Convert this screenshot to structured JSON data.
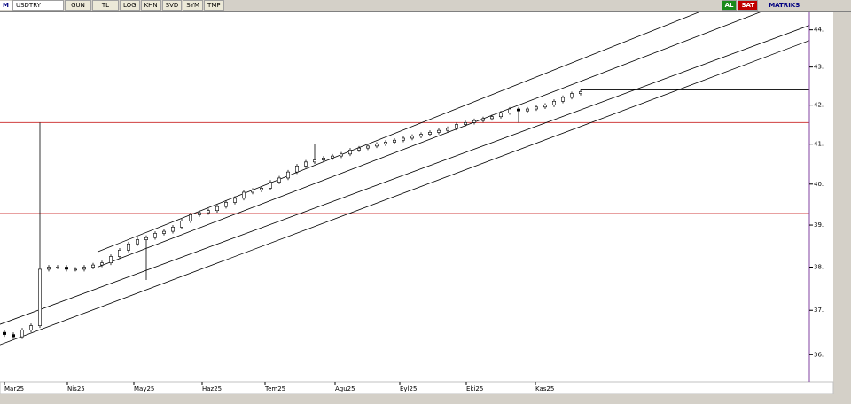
{
  "toolbar": {
    "logo": "M",
    "symbol": "USDTRY",
    "buttons": [
      "GUN",
      "TL",
      "LOG",
      "KHN",
      "SVD",
      "SYM",
      "TMP"
    ],
    "buy": "AL",
    "sell": "SAT",
    "brand": "MATRIKS"
  },
  "chart_data": {
    "type": "candlestick",
    "log_scale": true,
    "x": [
      0,
      1,
      2,
      3,
      4,
      5,
      6,
      7,
      8,
      9,
      10,
      11,
      12,
      13,
      14,
      15,
      16,
      17,
      18,
      19,
      20,
      21,
      22,
      23,
      24,
      25,
      26,
      27,
      28,
      29,
      30,
      31,
      32,
      33,
      34,
      35,
      36,
      37,
      38,
      39,
      40,
      41,
      42,
      43,
      44,
      45,
      46,
      47,
      48,
      49,
      50,
      51,
      52,
      53,
      54,
      55,
      56,
      57,
      58,
      59,
      60,
      61,
      62,
      63,
      64,
      65
    ],
    "open": [
      36.5,
      36.45,
      36.4,
      36.55,
      36.65,
      37.95,
      38.0,
      38.0,
      37.95,
      37.95,
      38.0,
      38.05,
      38.1,
      38.25,
      38.4,
      38.55,
      38.65,
      38.7,
      38.8,
      38.85,
      38.95,
      39.1,
      39.25,
      39.3,
      39.35,
      39.45,
      39.55,
      39.65,
      39.8,
      39.85,
      39.9,
      40.05,
      40.15,
      40.3,
      40.45,
      40.55,
      40.6,
      40.65,
      40.7,
      40.75,
      40.85,
      40.9,
      40.95,
      41.0,
      41.05,
      41.1,
      41.15,
      41.2,
      41.25,
      41.3,
      41.35,
      41.4,
      41.5,
      41.55,
      41.6,
      41.65,
      41.7,
      41.8,
      41.9,
      41.85,
      41.9,
      41.95,
      42.0,
      42.1,
      42.2,
      42.3
    ],
    "high": [
      36.55,
      36.5,
      36.6,
      36.7,
      41.55,
      38.05,
      38.05,
      38.05,
      38.0,
      38.05,
      38.1,
      38.15,
      38.3,
      38.45,
      38.6,
      38.7,
      38.75,
      38.85,
      38.9,
      39.0,
      39.15,
      39.3,
      39.35,
      39.4,
      39.5,
      39.6,
      39.7,
      39.85,
      39.9,
      39.95,
      40.1,
      40.2,
      40.35,
      40.5,
      40.6,
      41.0,
      40.7,
      40.75,
      40.8,
      40.9,
      40.95,
      41.0,
      41.05,
      41.1,
      41.15,
      41.2,
      41.25,
      41.3,
      41.35,
      41.4,
      41.45,
      41.55,
      41.6,
      41.65,
      41.7,
      41.75,
      41.85,
      41.95,
      41.95,
      41.95,
      42.0,
      42.05,
      42.15,
      42.25,
      42.35,
      42.4
    ],
    "low": [
      36.4,
      36.35,
      36.35,
      36.5,
      36.6,
      37.9,
      37.95,
      37.9,
      37.9,
      37.9,
      37.95,
      38.0,
      38.05,
      38.2,
      38.35,
      38.5,
      37.7,
      38.65,
      38.75,
      38.8,
      38.9,
      39.05,
      39.2,
      39.25,
      39.3,
      39.4,
      39.5,
      39.6,
      39.75,
      39.8,
      39.85,
      40.0,
      40.1,
      40.25,
      40.4,
      40.5,
      40.55,
      40.6,
      40.65,
      40.7,
      40.8,
      40.85,
      40.9,
      40.95,
      41.0,
      41.05,
      41.1,
      41.15,
      41.2,
      41.25,
      41.3,
      41.35,
      41.45,
      41.5,
      41.55,
      41.6,
      41.65,
      41.75,
      41.55,
      41.8,
      41.85,
      41.9,
      41.95,
      42.05,
      42.15,
      42.25
    ],
    "close": [
      36.45,
      36.4,
      36.55,
      36.65,
      37.95,
      38.0,
      38.0,
      37.95,
      37.95,
      38.0,
      38.05,
      38.1,
      38.25,
      38.4,
      38.55,
      38.65,
      38.7,
      38.8,
      38.85,
      38.95,
      39.1,
      39.25,
      39.3,
      39.35,
      39.45,
      39.55,
      39.65,
      39.8,
      39.85,
      39.9,
      40.05,
      40.15,
      40.3,
      40.45,
      40.55,
      40.6,
      40.65,
      40.7,
      40.75,
      40.85,
      40.9,
      40.95,
      41.0,
      41.05,
      41.1,
      41.15,
      41.2,
      41.25,
      41.3,
      41.35,
      41.4,
      41.5,
      41.55,
      41.6,
      41.65,
      41.7,
      41.8,
      41.9,
      41.85,
      41.9,
      41.95,
      42.0,
      42.1,
      42.2,
      42.3,
      42.35
    ],
    "up_color": "#ffffff",
    "down_color": "#000000",
    "wick_color": "#000000",
    "xlim": [
      -0.5,
      90.8
    ],
    "xticks": [
      {
        "value": 0,
        "label": "Mar25"
      },
      {
        "value": 7.1,
        "label": "Nis25"
      },
      {
        "value": 14.6,
        "label": "May25"
      },
      {
        "value": 22.3,
        "label": "Haz25"
      },
      {
        "value": 29.4,
        "label": "Tem25"
      },
      {
        "value": 37.3,
        "label": "Agu25"
      },
      {
        "value": 44.6,
        "label": "Eyl25"
      },
      {
        "value": 52.1,
        "label": "Eki25"
      },
      {
        "value": 59.9,
        "label": "Kas25"
      }
    ],
    "ylim": [
      35.4,
      44.5
    ],
    "yticks": [
      {
        "value": 36,
        "label": "36."
      },
      {
        "value": 37,
        "label": "37."
      },
      {
        "value": 38,
        "label": "38."
      },
      {
        "value": 39,
        "label": "39."
      },
      {
        "value": 40,
        "label": "40."
      },
      {
        "value": 41,
        "label": "41."
      },
      {
        "value": 42,
        "label": "42."
      },
      {
        "value": 43,
        "label": "43."
      },
      {
        "value": 44,
        "label": "44."
      }
    ],
    "hlines": [
      {
        "y": 41.55,
        "color": "#d04040"
      },
      {
        "y": 39.28,
        "color": "#d04040"
      }
    ],
    "segments": [
      {
        "x": [
          65,
          90.8
        ],
        "y": [
          42.4,
          42.4
        ],
        "color": "#000000"
      }
    ],
    "trendlines": [
      {
        "x": [
          10.5,
          81
        ],
        "y": [
          38.36,
          44.74
        ]
      },
      {
        "x": [
          10.5,
          88
        ],
        "y": [
          38.0,
          44.74
        ]
      },
      {
        "x": [
          -0.5,
          90.8
        ],
        "y": [
          36.68,
          44.12
        ]
      },
      {
        "x": [
          -0.5,
          90.8
        ],
        "y": [
          36.22,
          43.71
        ]
      }
    ],
    "trend_color": "#000000",
    "axis_color": "#8040a0"
  }
}
